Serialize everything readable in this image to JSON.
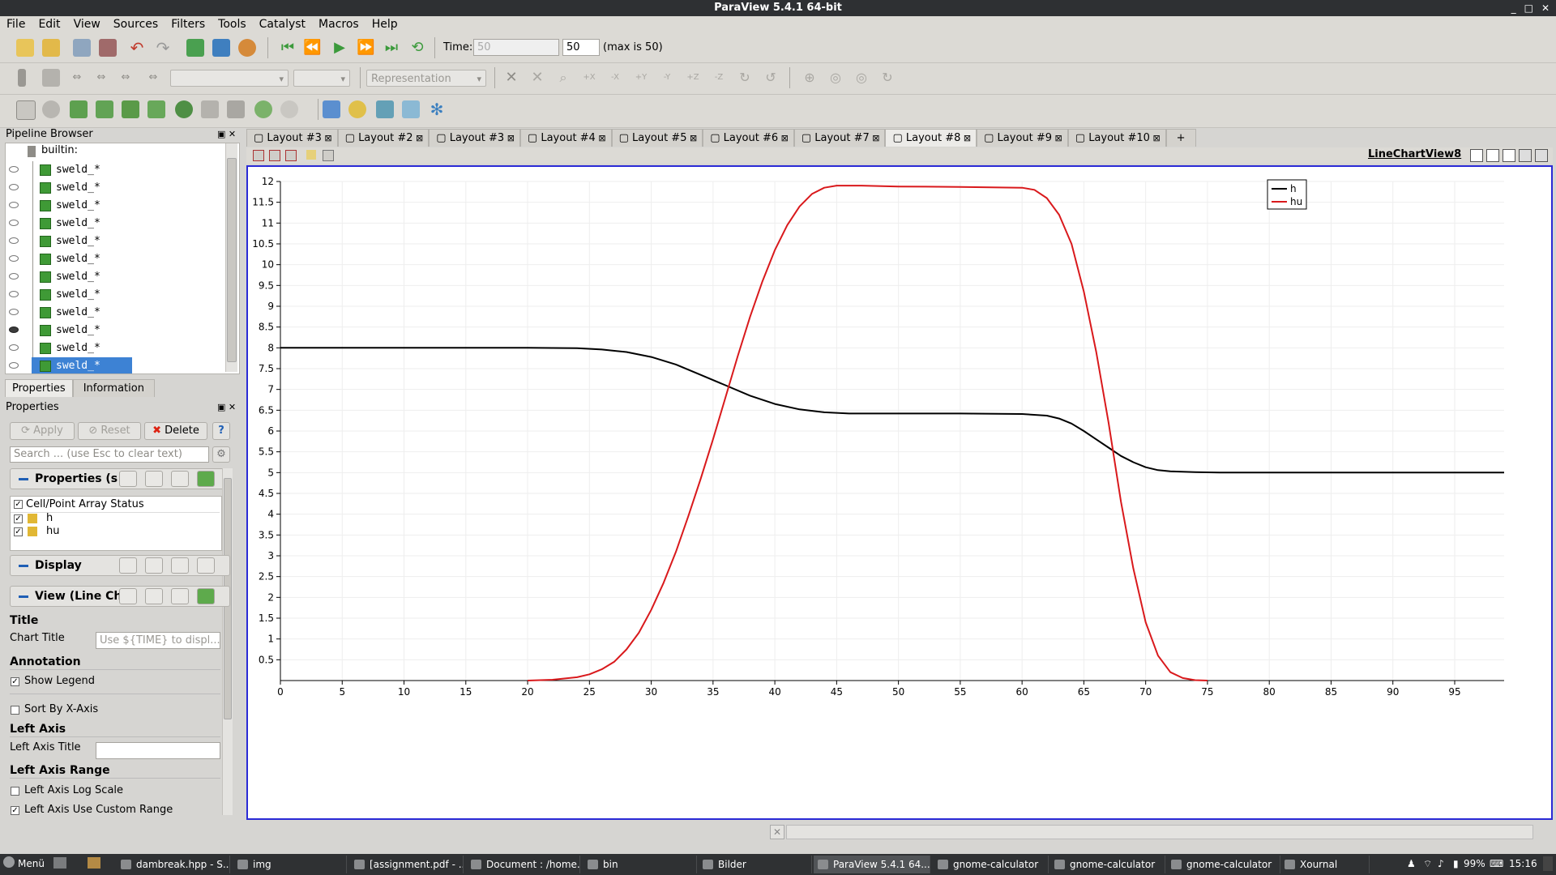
{
  "window": {
    "title": "ParaView 5.4.1 64-bit"
  },
  "menu": [
    "File",
    "Edit",
    "View",
    "Sources",
    "Filters",
    "Tools",
    "Catalyst",
    "Macros",
    "Help"
  ],
  "toolbar": {
    "time_label": "Time:",
    "time_value": "50",
    "time_spin": "50",
    "time_max": "(max is 50)",
    "representation": "Representation"
  },
  "pipeline": {
    "title": "Pipeline Browser",
    "root": "builtin:",
    "items": [
      "sweld_*",
      "sweld_*",
      "sweld_*",
      "sweld_*",
      "sweld_*",
      "sweld_*",
      "sweld_*",
      "sweld_*",
      "sweld_*",
      "sweld_*",
      "sweld_*",
      "sweld_*"
    ]
  },
  "properties": {
    "tab_properties": "Properties",
    "tab_information": "Information",
    "panel_title": "Properties",
    "apply": "Apply",
    "reset": "Reset",
    "delete": "Delete",
    "help": "?",
    "search_placeholder": "Search ... (use Esc to clear text)",
    "section_properties": "Properties (s",
    "array_status_label": "Cell/Point Array Status",
    "arrays": [
      "h",
      "hu"
    ],
    "section_display": "Display",
    "section_view": "View (Line Ch",
    "title_header": "Title",
    "chart_title_label": "Chart Title",
    "chart_title_placeholder": "Use ${TIME} to displ...",
    "annotation_header": "Annotation",
    "show_legend": "Show Legend",
    "sort_by_x": "Sort By X-Axis",
    "left_axis_header": "Left Axis",
    "left_axis_title_label": "Left Axis Title",
    "left_axis_range_header": "Left Axis Range",
    "left_axis_log": "Left Axis Log Scale",
    "left_axis_custom": "Left Axis Use Custom Range"
  },
  "layout_tabs": [
    "Layout #3",
    "Layout #2",
    "Layout #3",
    "Layout #4",
    "Layout #5",
    "Layout #6",
    "Layout #7",
    "Layout #8",
    "Layout #9",
    "Layout #10"
  ],
  "layout_add": "+",
  "view_title": "LineChartView8",
  "chart_data": {
    "type": "line",
    "xlim": [
      0,
      99
    ],
    "ylim": [
      0,
      12
    ],
    "x_ticks": [
      0,
      5,
      10,
      15,
      20,
      25,
      30,
      35,
      40,
      45,
      50,
      55,
      60,
      65,
      70,
      75,
      80,
      85,
      90,
      95
    ],
    "y_ticks": [
      "0.5",
      "1",
      "1.5",
      "2",
      "2.5",
      "3",
      "3.5",
      "4",
      "4.5",
      "5",
      "5.5",
      "6",
      "6.5",
      "7",
      "7.5",
      "8",
      "8.5",
      "9",
      "9.5",
      "10",
      "10.5",
      "11",
      "11.5",
      "12"
    ],
    "legend_position": "top-right",
    "grid": true,
    "series": [
      {
        "name": "h",
        "color": "#000000",
        "x": [
          0,
          20,
          24,
          26,
          28,
          30,
          32,
          34,
          36,
          38,
          40,
          42,
          44,
          46,
          50,
          55,
          60,
          62,
          63,
          64,
          65,
          66,
          67,
          68,
          69,
          70,
          71,
          72,
          74,
          76,
          80,
          90,
          99
        ],
        "y": [
          8,
          8,
          7.99,
          7.96,
          7.9,
          7.78,
          7.6,
          7.35,
          7.1,
          6.85,
          6.65,
          6.52,
          6.45,
          6.42,
          6.42,
          6.42,
          6.41,
          6.37,
          6.3,
          6.18,
          6.0,
          5.8,
          5.6,
          5.4,
          5.25,
          5.13,
          5.06,
          5.03,
          5.01,
          5.0,
          5.0,
          5.0,
          5.0
        ]
      },
      {
        "name": "hu",
        "color": "#d9191c",
        "x": [
          20,
          22,
          24,
          25,
          26,
          27,
          28,
          29,
          30,
          31,
          32,
          33,
          34,
          35,
          36,
          37,
          38,
          39,
          40,
          41,
          42,
          43,
          44,
          45,
          47,
          50,
          55,
          60,
          61,
          62,
          63,
          64,
          65,
          66,
          67,
          68,
          69,
          70,
          71,
          72,
          73,
          74,
          75
        ],
        "y": [
          0,
          0.02,
          0.08,
          0.15,
          0.27,
          0.45,
          0.75,
          1.15,
          1.7,
          2.35,
          3.1,
          3.95,
          4.85,
          5.8,
          6.8,
          7.8,
          8.75,
          9.6,
          10.35,
          10.95,
          11.4,
          11.7,
          11.85,
          11.9,
          11.9,
          11.88,
          11.87,
          11.85,
          11.8,
          11.6,
          11.2,
          10.5,
          9.35,
          7.9,
          6.2,
          4.3,
          2.7,
          1.4,
          0.6,
          0.2,
          0.06,
          0.01,
          0
        ]
      }
    ]
  },
  "taskbar": {
    "menu": "Menü",
    "tasks": [
      "dambreak.hpp - S...",
      "img",
      "[assignment.pdf - ...",
      "Document : /home...",
      "bin",
      "Bilder",
      "ParaView 5.4.1 64...",
      "gnome-calculator",
      "gnome-calculator",
      "gnome-calculator",
      "Xournal"
    ],
    "battery": "99%",
    "clock": "15:16"
  }
}
